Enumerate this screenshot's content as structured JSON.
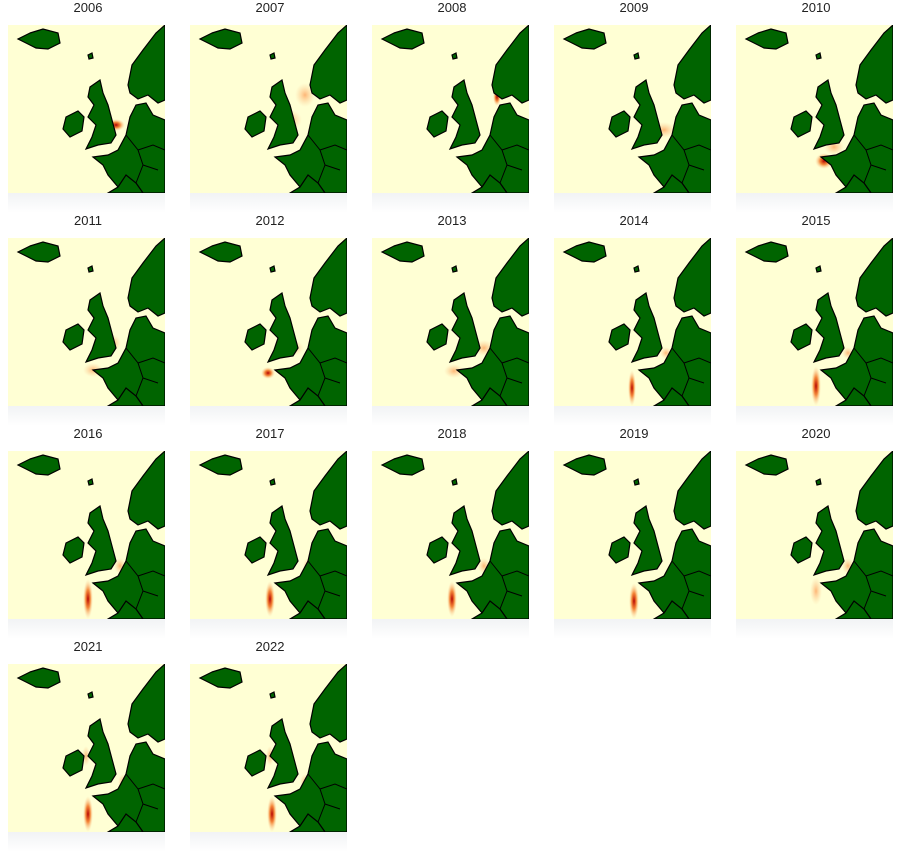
{
  "panels": [
    {
      "year": "2006"
    },
    {
      "year": "2007"
    },
    {
      "year": "2008"
    },
    {
      "year": "2009"
    },
    {
      "year": "2010"
    },
    {
      "year": "2011"
    },
    {
      "year": "2012"
    },
    {
      "year": "2013"
    },
    {
      "year": "2014"
    },
    {
      "year": "2015"
    },
    {
      "year": "2016"
    },
    {
      "year": "2017"
    },
    {
      "year": "2018"
    },
    {
      "year": "2019"
    },
    {
      "year": "2020"
    },
    {
      "year": "2021"
    },
    {
      "year": "2022"
    }
  ],
  "colors": {
    "sea": "#ffffd4",
    "land": "#006400",
    "border": "#000000",
    "low": "#fdd49e",
    "mid": "#f16913",
    "high": "#b30000",
    "peak": "#ffffff"
  }
}
